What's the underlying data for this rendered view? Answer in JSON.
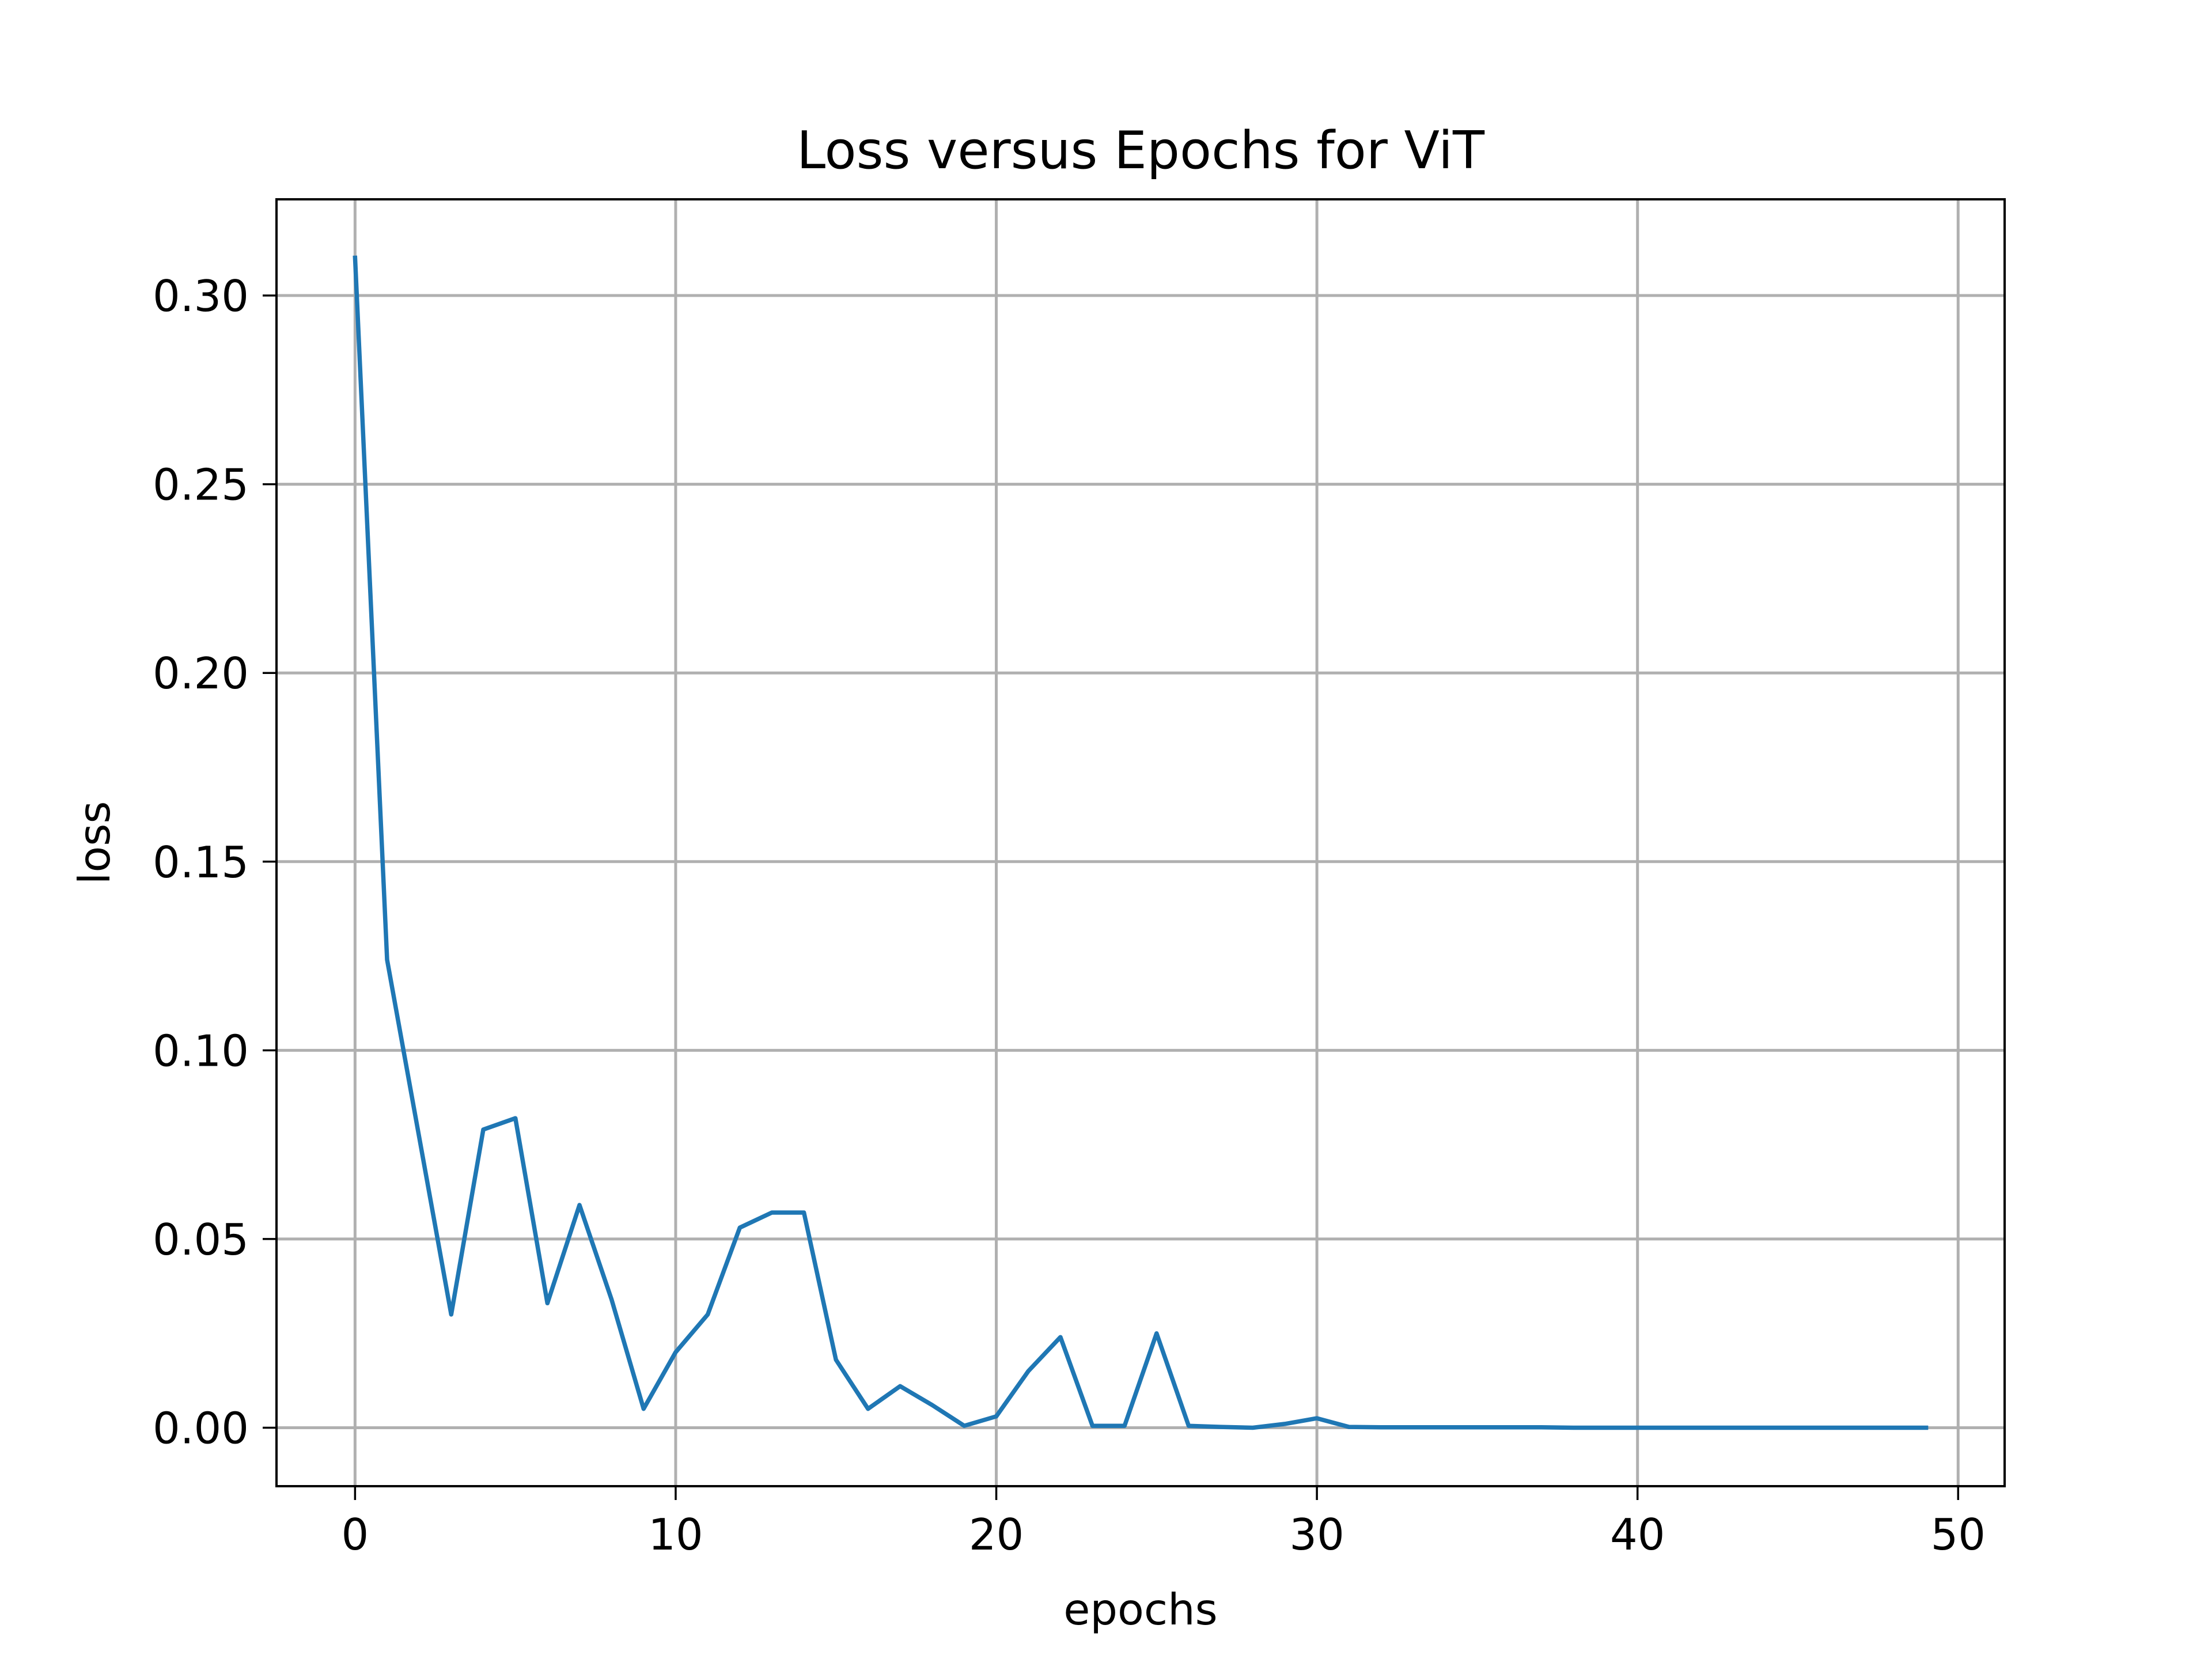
{
  "chart_data": {
    "type": "line",
    "title": "Loss versus Epochs for ViT",
    "xlabel": "epochs",
    "ylabel": "loss",
    "xlim": [
      -2.45,
      51.45
    ],
    "ylim": [
      -0.0155,
      0.3255
    ],
    "xticks": [
      0,
      10,
      20,
      30,
      40,
      50
    ],
    "xtick_labels": [
      "0",
      "10",
      "20",
      "30",
      "40",
      "50"
    ],
    "yticks": [
      0.0,
      0.05,
      0.1,
      0.15,
      0.2,
      0.25,
      0.3
    ],
    "ytick_labels": [
      "0.00",
      "0.05",
      "0.10",
      "0.15",
      "0.20",
      "0.25",
      "0.30"
    ],
    "grid": true,
    "legend": "none",
    "series": [
      {
        "color": "#1f77b4",
        "x": [
          0,
          1,
          2,
          3,
          4,
          5,
          6,
          7,
          8,
          9,
          10,
          11,
          12,
          13,
          14,
          15,
          16,
          17,
          18,
          19,
          20,
          21,
          22,
          23,
          24,
          25,
          26,
          27,
          28,
          29,
          30,
          31,
          32,
          33,
          34,
          35,
          36,
          37,
          38,
          39,
          40,
          41,
          42,
          43,
          44,
          45,
          46,
          47,
          48,
          49
        ],
        "y": [
          0.31,
          0.124,
          0.077,
          0.03,
          0.079,
          0.082,
          0.033,
          0.059,
          0.034,
          0.005,
          0.02,
          0.03,
          0.053,
          0.057,
          0.057,
          0.018,
          0.005,
          0.011,
          0.006,
          0.0005,
          0.003,
          0.015,
          0.024,
          0.0005,
          0.0005,
          0.025,
          0.0005,
          0.0002,
          0.0,
          0.001,
          0.0025,
          0.0002,
          0.0001,
          0.0001,
          0.0001,
          0.0001,
          0.0001,
          0.0001,
          0.0,
          0.0,
          0.0,
          0.0,
          0.0,
          0.0,
          0.0,
          0.0,
          0.0,
          0.0,
          0.0,
          0.0
        ]
      }
    ]
  }
}
